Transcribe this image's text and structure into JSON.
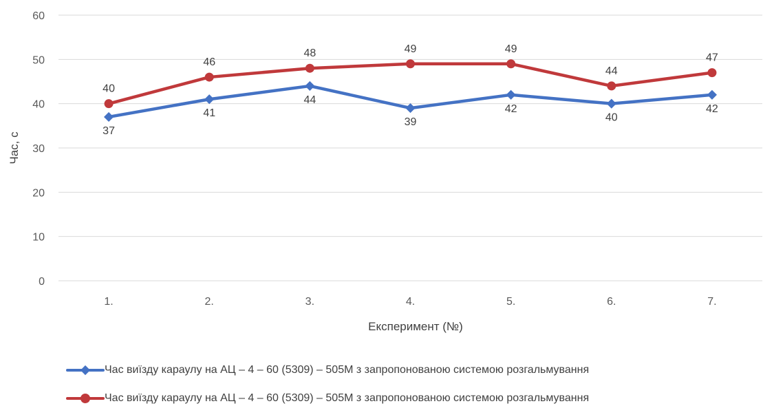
{
  "chart_data": {
    "type": "line",
    "categories": [
      "1.",
      "2.",
      "3.",
      "4.",
      "5.",
      "6.",
      "7."
    ],
    "series": [
      {
        "name": "Час виїзду караулу  на АЦ – 4 – 60 (5309) – 505М з запропонованою системою розгальмування",
        "values": [
          37,
          41,
          44,
          39,
          42,
          40,
          42
        ],
        "color": "#4472c4",
        "marker": "diamond",
        "label_position": "below"
      },
      {
        "name": "Час виїзду караулу  на АЦ – 4 – 60 (5309) – 505М з запропонованою системою розгальмування",
        "values": [
          40,
          46,
          48,
          49,
          49,
          44,
          47
        ],
        "color": "#c0393b",
        "marker": "circle",
        "label_position": "above"
      }
    ],
    "xlabel": "Експеримент (№)",
    "ylabel": "Час, с",
    "ylim": [
      0,
      60
    ],
    "yticks": [
      0,
      10,
      20,
      30,
      40,
      50,
      60
    ],
    "grid": true,
    "legend_position": "bottom"
  }
}
